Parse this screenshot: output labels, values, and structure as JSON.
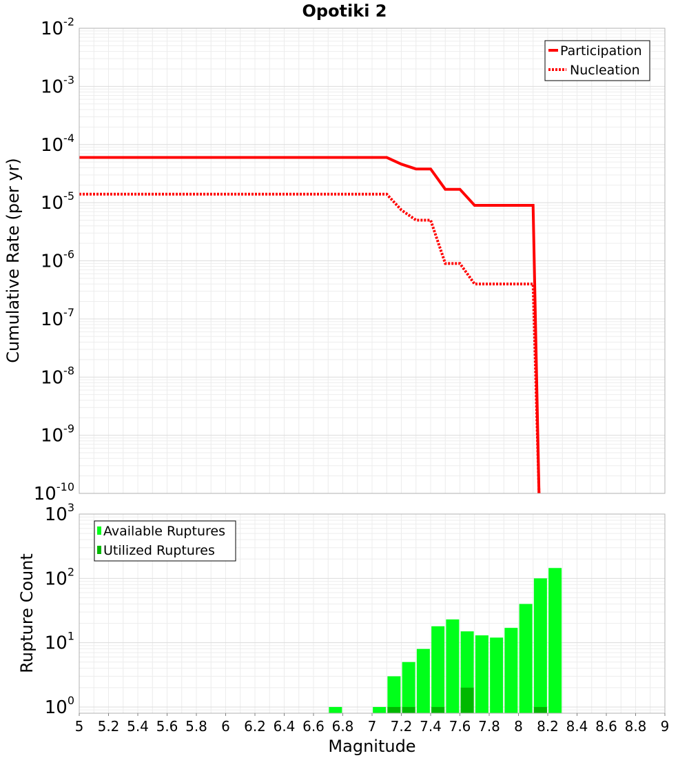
{
  "chart_data": [
    {
      "type": "line",
      "title": "Opotiki 2",
      "xlabel": "",
      "ylabel": "Cumulative Rate (per yr)",
      "xlim": [
        5,
        9
      ],
      "ylim": [
        1e-10,
        0.01
      ],
      "yscale": "log",
      "grid": true,
      "legend_position": "top-right",
      "y_tick_exponents": [
        "-2",
        "-3",
        "-4",
        "-5",
        "-6",
        "-7",
        "-8",
        "-9",
        "-10"
      ],
      "series": [
        {
          "name": "Participation",
          "style": "solid",
          "color": "#ff0000",
          "x": [
            5.0,
            7.1,
            7.2,
            7.3,
            7.4,
            7.5,
            7.6,
            7.7,
            7.8,
            7.9,
            8.0,
            8.1,
            8.14
          ],
          "y": [
            6e-05,
            6e-05,
            4.6e-05,
            3.8e-05,
            3.8e-05,
            1.7e-05,
            1.7e-05,
            9e-06,
            9e-06,
            9e-06,
            9e-06,
            9e-06,
            1e-10
          ]
        },
        {
          "name": "Nucleation",
          "style": "dotted",
          "color": "#ff0000",
          "x": [
            5.0,
            7.1,
            7.2,
            7.3,
            7.4,
            7.5,
            7.6,
            7.7,
            7.8,
            7.9,
            8.0,
            8.1,
            8.14
          ],
          "y": [
            1.4e-05,
            1.4e-05,
            7.5e-06,
            5e-06,
            5e-06,
            9e-07,
            9e-07,
            4e-07,
            4e-07,
            4e-07,
            4e-07,
            4e-07,
            1e-10
          ]
        }
      ]
    },
    {
      "type": "bar",
      "title": "",
      "xlabel": "Magnitude",
      "ylabel": "Rupture Count",
      "xlim": [
        5,
        9
      ],
      "ylim": [
        0.8,
        1000
      ],
      "yscale": "log",
      "grid": true,
      "legend_position": "top-left",
      "x_ticks": [
        "5",
        "5.2",
        "5.4",
        "5.6",
        "5.8",
        "6",
        "6.2",
        "6.4",
        "6.6",
        "6.8",
        "7",
        "7.2",
        "7.4",
        "7.6",
        "7.8",
        "8",
        "8.2",
        "8.4",
        "8.6",
        "8.8",
        "9"
      ],
      "y_tick_exponents": [
        "3",
        "2",
        "1",
        "0"
      ],
      "categories": [
        "6.75",
        "7.05",
        "7.15",
        "7.25",
        "7.35",
        "7.45",
        "7.55",
        "7.65",
        "7.75",
        "7.85",
        "7.95",
        "8.05",
        "8.15",
        "8.25"
      ],
      "series": [
        {
          "name": "Available Ruptures",
          "color": "#00ff1a",
          "values": [
            1,
            1,
            3,
            5,
            8,
            18,
            23,
            15,
            13,
            12,
            17,
            40,
            100,
            145
          ]
        },
        {
          "name": "Utilized Ruptures",
          "color": "#00b800",
          "values": [
            0,
            0,
            1,
            1,
            0,
            1,
            0,
            2,
            0,
            0,
            0,
            0,
            1,
            0
          ]
        }
      ]
    }
  ]
}
